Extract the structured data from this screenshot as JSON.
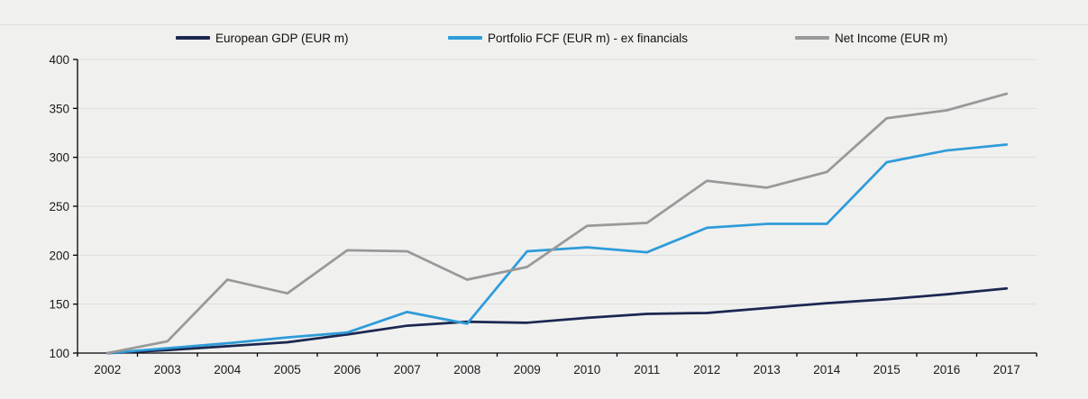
{
  "page": {
    "background": "#f0f0ef",
    "divider_color": "#dddddd",
    "gridline_color": "#dcdcdc",
    "axis_color": "#000000",
    "tick_label_color": "#1a1a1a"
  },
  "legend": [
    {
      "label": "European GDP (EUR m)",
      "color": "#1c2750"
    },
    {
      "label": "Portfolio FCF (EUR m) - ex financials",
      "color": "#2e9cd9"
    },
    {
      "label": "Net Income (EUR m)",
      "color": "#999999"
    }
  ],
  "chart_data": {
    "type": "line",
    "title": "",
    "xlabel": "",
    "ylabel": "",
    "x": [
      "2002",
      "2003",
      "2004",
      "2005",
      "2006",
      "2007",
      "2008",
      "2009",
      "2010",
      "2011",
      "2012",
      "2013",
      "2014",
      "2015",
      "2016",
      "2017"
    ],
    "series": [
      {
        "name": "European GDP (EUR m)",
        "color": "#1c2750",
        "values": [
          100,
          103,
          107,
          111,
          119,
          128,
          132,
          131,
          136,
          140,
          141,
          146,
          151,
          155,
          160,
          166
        ]
      },
      {
        "name": "Portfolio FCF (EUR m) - ex financials",
        "color": "#2e9cd9",
        "values": [
          100,
          105,
          110,
          116,
          121,
          142,
          130,
          204,
          208,
          203,
          228,
          232,
          232,
          295,
          307,
          313
        ]
      },
      {
        "name": "Net Income (EUR m)",
        "color": "#999999",
        "values": [
          100,
          112,
          175,
          161,
          205,
          204,
          175,
          188,
          230,
          233,
          276,
          269,
          285,
          340,
          348,
          365
        ]
      }
    ],
    "ylim": [
      100,
      400
    ],
    "yticks": [
      100,
      150,
      200,
      250,
      300,
      350,
      400
    ],
    "grid": true,
    "legend_position": "top"
  }
}
